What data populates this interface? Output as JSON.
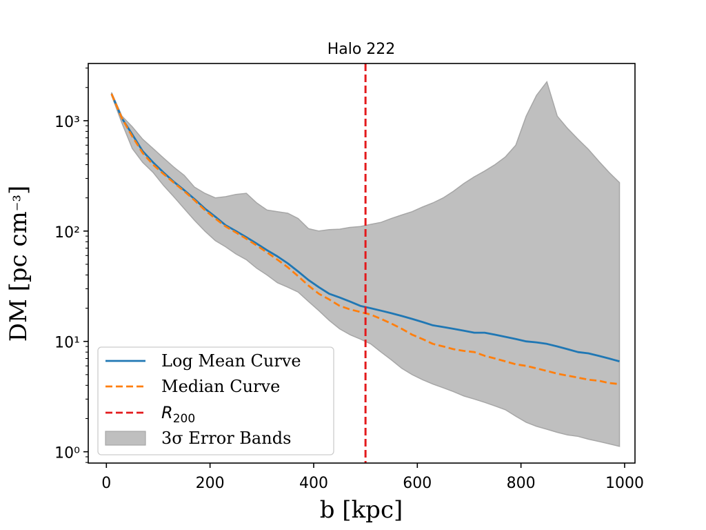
{
  "chart_data": {
    "type": "line",
    "title": "Halo 222",
    "xlabel": "b [kpc]",
    "ylabel": "DM [pc cm⁻³]",
    "xlim": [
      -35,
      1020
    ],
    "ylim": [
      0.79,
      3300
    ],
    "yscale": "log",
    "x_ticks": [
      0,
      200,
      400,
      600,
      800,
      1000
    ],
    "x_tick_labels": [
      "0",
      "200",
      "400",
      "600",
      "800",
      "1000"
    ],
    "y_ticks": [
      1,
      10,
      100,
      1000
    ],
    "y_tick_labels": [
      "10⁰",
      "10¹",
      "10²",
      "10³"
    ],
    "grid": false,
    "legend_position": "lower-left",
    "x": [
      10,
      30,
      50,
      70,
      90,
      110,
      130,
      150,
      170,
      190,
      210,
      230,
      250,
      270,
      290,
      310,
      330,
      350,
      370,
      390,
      410,
      430,
      450,
      470,
      490,
      510,
      530,
      550,
      570,
      590,
      610,
      630,
      650,
      670,
      690,
      710,
      730,
      750,
      770,
      790,
      810,
      830,
      850,
      870,
      890,
      910,
      930,
      950,
      970,
      990
    ],
    "series": [
      {
        "name": "Log Mean Curve",
        "style": "solid",
        "color": "#1f77b4",
        "values": [
          1750,
          1050,
          750,
          530,
          420,
          340,
          280,
          235,
          195,
          160,
          135,
          113,
          100,
          88,
          77,
          67,
          59,
          51,
          43,
          36,
          31,
          27,
          25,
          23,
          21,
          20,
          19,
          18,
          17,
          16,
          15,
          14,
          13.5,
          13,
          12.5,
          12,
          12,
          11.5,
          11,
          10.5,
          10,
          9.8,
          9.5,
          9,
          8.5,
          8,
          7.8,
          7.4,
          7.0,
          6.6
        ]
      },
      {
        "name": "Median Curve",
        "style": "dashed",
        "color": "#ff7f0e",
        "values": [
          1750,
          1050,
          720,
          510,
          400,
          330,
          275,
          230,
          190,
          155,
          130,
          110,
          97,
          85,
          74,
          64,
          55,
          47,
          39,
          32,
          27,
          24,
          21,
          19.5,
          18.5,
          17.5,
          16,
          14.5,
          13,
          11.5,
          10.5,
          9.5,
          9,
          8.5,
          8.2,
          8,
          7.4,
          7,
          6.6,
          6.2,
          6.0,
          5.7,
          5.4,
          5.1,
          4.9,
          4.7,
          4.5,
          4.4,
          4.2,
          4.1
        ]
      }
    ],
    "band": {
      "name": "3σ Error Bands",
      "color": "#bfbfbf",
      "upper": [
        1800,
        1100,
        880,
        680,
        560,
        460,
        380,
        320,
        250,
        220,
        200,
        205,
        215,
        220,
        180,
        155,
        150,
        145,
        130,
        105,
        100,
        103,
        104,
        108,
        110,
        115,
        120,
        130,
        140,
        150,
        165,
        180,
        200,
        230,
        270,
        310,
        350,
        400,
        470,
        600,
        1100,
        1700,
        2250,
        1100,
        850,
        680,
        550,
        430,
        340,
        275
      ],
      "lower": [
        1700,
        950,
        560,
        420,
        340,
        260,
        205,
        160,
        125,
        100,
        82,
        72,
        62,
        55,
        46,
        40,
        34,
        31,
        28,
        23,
        19,
        15.5,
        13,
        11.5,
        10.5,
        9.5,
        8,
        6.8,
        5.7,
        5.0,
        4.5,
        4.1,
        3.8,
        3.5,
        3.2,
        3.0,
        2.8,
        2.6,
        2.4,
        2.1,
        1.85,
        1.7,
        1.6,
        1.5,
        1.42,
        1.38,
        1.3,
        1.24,
        1.18,
        1.12
      ]
    },
    "vline": {
      "name": "R200",
      "x": 500,
      "color": "#e31a1c",
      "style": "dashed"
    },
    "legend": [
      {
        "label": "Log Mean Curve",
        "kind": "line-solid",
        "color": "#1f77b4"
      },
      {
        "label": "Median Curve",
        "kind": "line-dashed",
        "color": "#ff7f0e"
      },
      {
        "label_main": "R",
        "label_sub": "200",
        "kind": "line-dashed",
        "color": "#e31a1c"
      },
      {
        "label": "3σ Error Bands",
        "kind": "patch",
        "color": "#bfbfbf"
      }
    ]
  }
}
